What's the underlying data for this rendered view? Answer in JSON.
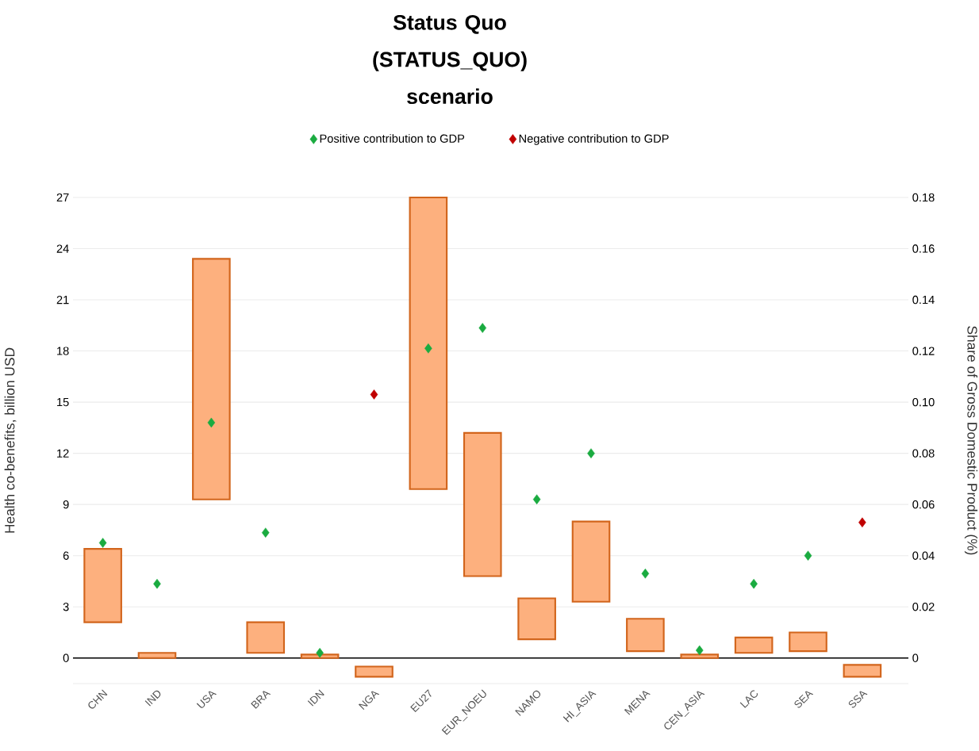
{
  "chart_data": {
    "type": "bar",
    "title": "Status Quo (STATUS_QUO) scenario",
    "ylabel": "Health co-benefits, billion USD",
    "y2label": "Share of Gross Domestic Product (%)",
    "categories": [
      "CHN",
      "IND",
      "USA",
      "BRA",
      "IDN",
      "NGA",
      "EU27",
      "EUR_NOEU",
      "NAMO",
      "HI_ASIA",
      "MENA",
      "CEN_ASIA",
      "LAC",
      "SEA",
      "SSA"
    ],
    "series": [
      {
        "color": "#fdb07e",
        "base": [
          2.1,
          0,
          9.3,
          0.3,
          0,
          -1.1,
          9.9,
          4.8,
          1.1,
          3.3,
          0.4,
          0,
          0.3,
          0.4,
          -1.1
        ],
        "values": [
          4.3,
          0.3,
          14.1,
          1.8,
          0.2,
          0.6,
          17.1,
          8.4,
          2.4,
          4.7,
          1.9,
          0.2,
          0.9,
          1.1,
          0.7
        ]
      },
      {
        "type": "scatter",
        "axis": "y2",
        "name": "Positive contribution to GDP",
        "color": "#1aab40",
        "values": [
          0.045,
          0.029,
          0.092,
          0.049,
          0.002,
          null,
          0.121,
          0.129,
          0.062,
          0.08,
          0.033,
          0.003,
          0.029,
          0.04,
          null
        ]
      },
      {
        "type": "scatter",
        "axis": "y2",
        "name": "Negative contribution to GDP",
        "color": "#c00000",
        "values": [
          null,
          null,
          null,
          null,
          null,
          0.103,
          null,
          null,
          null,
          null,
          null,
          null,
          null,
          null,
          0.053
        ]
      }
    ],
    "ylim": [
      -1.5,
      27
    ],
    "yticks": [
      0,
      3,
      6,
      9,
      12,
      15,
      18,
      21,
      24,
      27
    ],
    "y2lim": [
      -0.01,
      0.18
    ],
    "y2ticks": [
      0,
      0.02,
      0.04,
      0.06,
      0.08,
      {
        "value": 0.1,
        "label": "0.10"
      },
      0.12,
      0.14,
      0.16,
      0.18
    ],
    "grid": "y",
    "legend": "top",
    "marker": "diamond"
  }
}
